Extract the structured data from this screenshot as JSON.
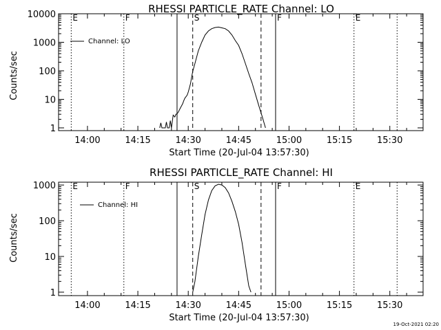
{
  "footer": {
    "timestamp": "19-Oct-2021 02:20"
  },
  "chart_data": [
    {
      "type": "line",
      "title": "RHESSI PARTICLE_RATE Channel: LO",
      "xlabel": "Start Time (20-Jul-04 13:57:30)",
      "ylabel": "Counts/sec",
      "y_scale": "log",
      "ylim": [
        0.8,
        10000
      ],
      "xlim_minutes": [
        -6.1,
        102.4
      ],
      "x_ticks": [
        "14:00",
        "14:15",
        "14:30",
        "14:45",
        "15:00",
        "15:15",
        "15:30"
      ],
      "y_ticks": [
        "1",
        "10",
        "100",
        "1000",
        "10000"
      ],
      "legend": "Channel: LO",
      "legend_position": "top-left",
      "flags": [
        {
          "label": "E",
          "time": "13:55:10",
          "style": "dotted"
        },
        {
          "label": "F",
          "time": "14:10:50",
          "style": "dotted"
        },
        {
          "label": "S",
          "time": "14:31:20",
          "style": "dashed"
        },
        {
          "label": "F",
          "time": "14:56:00",
          "style": "solid"
        },
        {
          "label": "E",
          "time": "15:19:20",
          "style": "dotted"
        }
      ],
      "extra_lines": [
        {
          "time": "14:26:40",
          "style": "solid"
        },
        {
          "time": "14:51:40",
          "style": "dashed"
        },
        {
          "time": "15:32:10",
          "style": "dotted"
        }
      ],
      "series": [
        {
          "name": "Channel: LO",
          "x": [
            "14:21:30",
            "14:21:50",
            "14:22:10",
            "14:23:10",
            "14:23:30",
            "14:23:50",
            "14:24:20",
            "14:24:40",
            "14:25:00",
            "14:25:30",
            "14:26:00",
            "14:26:20",
            "14:26:40",
            "14:27:00",
            "14:27:40",
            "14:28:20",
            "14:28:40",
            "14:29:00",
            "14:29:40",
            "14:30:00",
            "14:30:20",
            "14:30:40",
            "14:31:00",
            "14:31:20",
            "14:32:00",
            "14:33:00",
            "14:34:00",
            "14:35:00",
            "14:36:00",
            "14:37:00",
            "14:38:00",
            "14:39:00",
            "14:40:00",
            "14:41:00",
            "14:42:00",
            "14:43:00",
            "14:44:00",
            "14:45:00",
            "14:46:00",
            "14:47:00",
            "14:48:00",
            "14:49:00",
            "14:50:00",
            "14:51:00",
            "14:52:00",
            "14:53:00"
          ],
          "values": [
            1,
            1.5,
            1,
            1,
            1.6,
            1,
            1,
            1.8,
            1,
            2.8,
            2.4,
            3,
            3.1,
            3.5,
            5,
            7,
            9,
            11,
            14,
            18,
            25,
            35,
            60,
            95,
            180,
            500,
            1000,
            1800,
            2500,
            3000,
            3300,
            3400,
            3200,
            3000,
            2500,
            1800,
            1150,
            780,
            400,
            180,
            80,
            38,
            15,
            6,
            2.5,
            1
          ]
        }
      ]
    },
    {
      "type": "line",
      "title": "RHESSI PARTICLE_RATE Channel: HI",
      "xlabel": "Start Time (20-Jul-04 13:57:30)",
      "ylabel": "Counts/sec",
      "y_scale": "log",
      "ylim": [
        0.8,
        1200
      ],
      "xlim_minutes": [
        -6.1,
        102.4
      ],
      "x_ticks": [
        "14:00",
        "14:15",
        "14:30",
        "14:45",
        "15:00",
        "15:15",
        "15:30"
      ],
      "y_ticks": [
        "1",
        "10",
        "100",
        "1000"
      ],
      "legend": "Channel: HI",
      "legend_position": "top-left",
      "flags": [
        {
          "label": "E",
          "time": "13:55:10",
          "style": "dotted"
        },
        {
          "label": "F",
          "time": "14:10:50",
          "style": "dotted"
        },
        {
          "label": "S",
          "time": "14:31:20",
          "style": "dashed"
        },
        {
          "label": "F",
          "time": "14:56:00",
          "style": "solid"
        },
        {
          "label": "E",
          "time": "15:19:20",
          "style": "dotted"
        }
      ],
      "extra_lines": [
        {
          "time": "14:26:40",
          "style": "solid"
        },
        {
          "time": "14:51:40",
          "style": "dashed"
        },
        {
          "time": "15:32:10",
          "style": "dotted"
        }
      ],
      "series": [
        {
          "name": "Channel: HI",
          "x": [
            "14:31:20",
            "14:32:00",
            "14:33:00",
            "14:34:00",
            "14:35:00",
            "14:36:00",
            "14:37:00",
            "14:38:00",
            "14:39:00",
            "14:40:00",
            "14:41:00",
            "14:42:00",
            "14:43:00",
            "14:44:00",
            "14:45:00",
            "14:46:00",
            "14:47:00",
            "14:48:00",
            "14:48:40"
          ],
          "values": [
            1,
            2,
            10,
            40,
            150,
            380,
            700,
            950,
            1050,
            1000,
            850,
            600,
            350,
            180,
            80,
            25,
            6,
            1.5,
            1
          ]
        }
      ]
    }
  ]
}
